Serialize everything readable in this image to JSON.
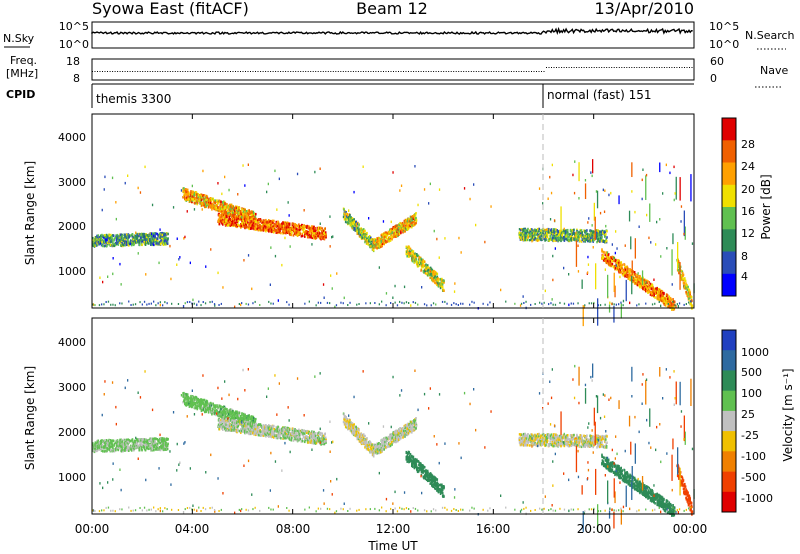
{
  "header": {
    "station": "Syowa East (fitACF)",
    "beam": "Beam 12",
    "date": "13/Apr/2010"
  },
  "noise_panel": {
    "left_label": "N.Sky",
    "left_ticks": [
      "10^5",
      "10^0"
    ],
    "right_label": "N.Search",
    "right_ticks": [
      "10^5",
      "10^0"
    ]
  },
  "freq_panel": {
    "left_label_line1": "Freq.",
    "left_label_line2": "[MHz]",
    "left_ticks": [
      "18",
      "8"
    ],
    "right_label": "Nave",
    "right_ticks": [
      "60",
      "0"
    ]
  },
  "cpid_panel": {
    "label": "CPID",
    "segments": [
      {
        "start_hour": 0,
        "label": "themis 3300"
      },
      {
        "start_hour": 18,
        "label": "normal (fast) 151"
      }
    ]
  },
  "power_panel": {
    "ylabel": "Slant Range [km]",
    "yticks": [
      "1000",
      "2000",
      "3000",
      "4000"
    ],
    "cbar_label": "Power [dB]",
    "cbar_ticks": [
      "4",
      "8",
      "12",
      "16",
      "20",
      "24",
      "28"
    ],
    "colors": [
      "#0000ff",
      "#2a4db8",
      "#2e8b57",
      "#60c050",
      "#f0e000",
      "#ffa000",
      "#f06000",
      "#e00000"
    ]
  },
  "velocity_panel": {
    "ylabel": "Slant Range [km]",
    "yticks": [
      "1000",
      "2000",
      "3000",
      "4000"
    ],
    "cbar_label": "Velocity [m s⁻¹]",
    "cbar_ticks": [
      "1000",
      "500",
      "100",
      "25",
      "-25",
      "-100",
      "-500",
      "-1000"
    ],
    "colors": [
      "#2040c0",
      "#2e6aa0",
      "#2e8b57",
      "#60c050",
      "#c0c0c0",
      "#f0c000",
      "#f08000",
      "#f04000",
      "#e00000"
    ]
  },
  "xaxis": {
    "label": "Time UT",
    "ticks": [
      "00:00",
      "04:00",
      "08:00",
      "12:00",
      "16:00",
      "20:00",
      "00:00"
    ]
  },
  "chart_data": {
    "type": "heatmap",
    "x_range_hours": [
      0,
      24
    ],
    "y_range_km": [
      180,
      4500
    ],
    "power_scale_db": [
      0,
      30
    ],
    "velocity_scale_ms": [
      -1000,
      1000
    ],
    "features": [
      {
        "t_start": 0.0,
        "t_end": 3.0,
        "range_start": 1700,
        "range_end": 1750,
        "power": 10,
        "velocity": 40
      },
      {
        "t_start": 3.6,
        "t_end": 6.5,
        "range_start": 2750,
        "range_end": 2200,
        "power": 20,
        "velocity": 60
      },
      {
        "t_start": 5.0,
        "t_end": 9.3,
        "range_start": 2200,
        "range_end": 1850,
        "power": 24,
        "velocity": 10
      },
      {
        "t_start": 10.0,
        "t_end": 11.2,
        "range_start": 2300,
        "range_end": 1600,
        "power": 14,
        "velocity": -10
      },
      {
        "t_start": 11.2,
        "t_end": 12.9,
        "range_start": 1600,
        "range_end": 2200,
        "power": 20,
        "velocity": 5
      },
      {
        "t_start": 12.5,
        "t_end": 14.0,
        "range_start": 1500,
        "range_end": 700,
        "power": 16,
        "velocity": 150
      },
      {
        "t_start": 17.0,
        "t_end": 20.5,
        "range_start": 1850,
        "range_end": 1800,
        "power": 12,
        "velocity": -5
      },
      {
        "t_start": 20.3,
        "t_end": 23.2,
        "range_start": 1400,
        "range_end": 250,
        "power": 22,
        "velocity": 300
      },
      {
        "t_start": 23.3,
        "t_end": 23.9,
        "range_start": 1200,
        "range_end": 300,
        "power": 18,
        "velocity": -600
      }
    ]
  }
}
